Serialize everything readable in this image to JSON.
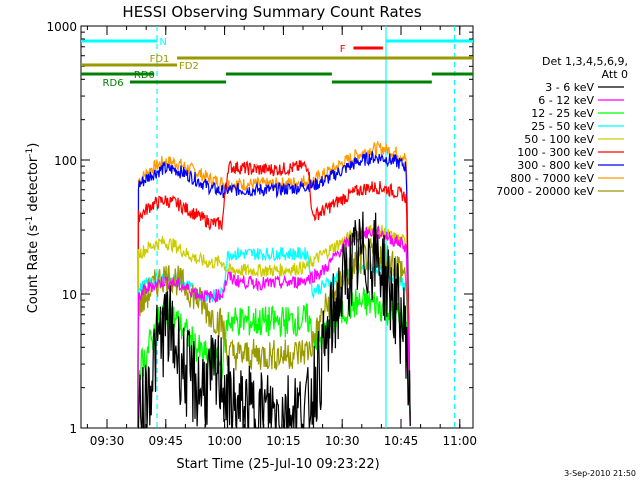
{
  "chart_data": {
    "type": "line",
    "title": "HESSI Observing Summary Count Rates",
    "xlabel": "Start Time (25-Jul-10 09:23:22)",
    "ylabel": "Count Rate (s⁻¹ detector⁻¹)",
    "ylabel_parts": [
      "Count Rate (s",
      "-1",
      " detector",
      "-1",
      ")"
    ],
    "yscale": "log",
    "ylim": [
      1,
      1000
    ],
    "xlim_minutes": [
      0,
      100
    ],
    "xticks": [
      {
        "t": 6.63,
        "label": "09:30"
      },
      {
        "t": 21.63,
        "label": "09:45"
      },
      {
        "t": 36.63,
        "label": "10:00"
      },
      {
        "t": 51.63,
        "label": "10:15"
      },
      {
        "t": 66.63,
        "label": "10:30"
      },
      {
        "t": 81.63,
        "label": "10:45"
      },
      {
        "t": 96.63,
        "label": "11:00"
      }
    ],
    "yticks": [
      {
        "v": 1,
        "label": "1"
      },
      {
        "v": 10,
        "label": "10"
      },
      {
        "v": 100,
        "label": "100"
      },
      {
        "v": 1000,
        "label": "1000"
      }
    ],
    "footer": "3-Sep-2010 21:50",
    "legend": {
      "title_lines": [
        "Det 1,3,4,5,6,9,",
        "Att 0"
      ],
      "placement": "right"
    },
    "series": [
      {
        "name": "3 - 6 keV",
        "color": "#000000",
        "points": [
          [
            14.5,
            1
          ],
          [
            16,
            1.4
          ],
          [
            17.5,
            2.2
          ],
          [
            19,
            3.6
          ],
          [
            20.5,
            5
          ],
          [
            22,
            6
          ],
          [
            23,
            5
          ],
          [
            25,
            3.5
          ],
          [
            27,
            2.5
          ],
          [
            30,
            2
          ],
          [
            33,
            2.2
          ],
          [
            36,
            2.5
          ],
          [
            37.5,
            1.6
          ],
          [
            40,
            1.3
          ],
          [
            45,
            1.3
          ],
          [
            50,
            1.3
          ],
          [
            55,
            1.3
          ],
          [
            58,
            1.3
          ],
          [
            59,
            2
          ],
          [
            62,
            3.5
          ],
          [
            65,
            8
          ],
          [
            68,
            14
          ],
          [
            71,
            19
          ],
          [
            74,
            20
          ],
          [
            76,
            18
          ],
          [
            78,
            12
          ],
          [
            80,
            9
          ],
          [
            82,
            6
          ],
          [
            83,
            5
          ],
          [
            84,
            1
          ]
        ]
      },
      {
        "name": "6 - 12 keV",
        "color": "#ff00ff",
        "points": [
          [
            14.5,
            1
          ],
          [
            14.6,
            9.5
          ],
          [
            16,
            10.5
          ],
          [
            18,
            11.5
          ],
          [
            21,
            12.5
          ],
          [
            24,
            12
          ],
          [
            27,
            11
          ],
          [
            30,
            10
          ],
          [
            33,
            9.5
          ],
          [
            36,
            10
          ],
          [
            37.5,
            13.5
          ],
          [
            40,
            12.5
          ],
          [
            45,
            12
          ],
          [
            50,
            12
          ],
          [
            55,
            12.3
          ],
          [
            58,
            13
          ],
          [
            59,
            13.5
          ],
          [
            62,
            15
          ],
          [
            66,
            21
          ],
          [
            70,
            27
          ],
          [
            74,
            29
          ],
          [
            77,
            28
          ],
          [
            80,
            25
          ],
          [
            82,
            24
          ],
          [
            83,
            22
          ],
          [
            84,
            1
          ]
        ]
      },
      {
        "name": "12 - 25 keV",
        "color": "#00ff00",
        "points": [
          [
            14.5,
            1
          ],
          [
            14.6,
            2.8
          ],
          [
            16,
            3.2
          ],
          [
            18,
            4.5
          ],
          [
            20,
            6.5
          ],
          [
            22,
            7.5
          ],
          [
            24,
            6.5
          ],
          [
            27,
            5
          ],
          [
            30,
            3.8
          ],
          [
            33,
            3.2
          ],
          [
            36,
            3
          ],
          [
            37.5,
            6.5
          ],
          [
            40,
            6.3
          ],
          [
            45,
            6.2
          ],
          [
            50,
            6.2
          ],
          [
            55,
            6.3
          ],
          [
            58,
            6.5
          ],
          [
            59,
            5
          ],
          [
            61,
            4.5
          ],
          [
            64,
            6
          ],
          [
            67,
            7.5
          ],
          [
            70,
            8.5
          ],
          [
            74,
            8.6
          ],
          [
            77,
            8
          ],
          [
            80,
            7
          ],
          [
            82,
            6.5
          ],
          [
            83,
            6
          ],
          [
            84,
            1
          ]
        ]
      },
      {
        "name": "25 - 50 keV",
        "color": "#00ffff",
        "points": [
          [
            14.5,
            1
          ],
          [
            14.6,
            10.5
          ],
          [
            16,
            11.5
          ],
          [
            18,
            12.5
          ],
          [
            21,
            13.5
          ],
          [
            24,
            13
          ],
          [
            27,
            11.5
          ],
          [
            30,
            10
          ],
          [
            33,
            9.5
          ],
          [
            36,
            10
          ],
          [
            37.5,
            20
          ],
          [
            40,
            20
          ],
          [
            45,
            20
          ],
          [
            50,
            20
          ],
          [
            55,
            20
          ],
          [
            58,
            20
          ],
          [
            59,
            10.5
          ],
          [
            62,
            11.5
          ],
          [
            66,
            13.5
          ],
          [
            70,
            15
          ],
          [
            74,
            16
          ],
          [
            77,
            15
          ],
          [
            80,
            13
          ],
          [
            82,
            12
          ],
          [
            83,
            11
          ],
          [
            84,
            1
          ]
        ]
      },
      {
        "name": "50 - 100 keV",
        "color": "#cccc00",
        "points": [
          [
            14.5,
            1
          ],
          [
            14.6,
            20
          ],
          [
            16,
            21
          ],
          [
            18,
            23
          ],
          [
            21,
            24.5
          ],
          [
            24,
            23
          ],
          [
            27,
            20
          ],
          [
            30,
            18
          ],
          [
            33,
            17
          ],
          [
            36,
            17.5
          ],
          [
            37.5,
            15
          ],
          [
            40,
            15
          ],
          [
            45,
            15
          ],
          [
            50,
            15
          ],
          [
            55,
            15.5
          ],
          [
            58,
            16
          ],
          [
            59,
            17.5
          ],
          [
            62,
            20
          ],
          [
            66,
            24
          ],
          [
            70,
            28
          ],
          [
            74,
            30
          ],
          [
            77,
            29
          ],
          [
            80,
            26
          ],
          [
            82,
            25
          ],
          [
            83,
            24
          ],
          [
            84,
            1
          ]
        ]
      },
      {
        "name": "100 - 300 keV",
        "color": "#ff0000",
        "points": [
          [
            14.5,
            1
          ],
          [
            14.6,
            38
          ],
          [
            16,
            41
          ],
          [
            18,
            46
          ],
          [
            21,
            50
          ],
          [
            24,
            48
          ],
          [
            27,
            43
          ],
          [
            30,
            38
          ],
          [
            33,
            34
          ],
          [
            36,
            33
          ],
          [
            37.5,
            89
          ],
          [
            40,
            88
          ],
          [
            45,
            85
          ],
          [
            50,
            85
          ],
          [
            55,
            88
          ],
          [
            58,
            92
          ],
          [
            59,
            38
          ],
          [
            62,
            42
          ],
          [
            66,
            50
          ],
          [
            70,
            58
          ],
          [
            74,
            63
          ],
          [
            77,
            62
          ],
          [
            80,
            58
          ],
          [
            82,
            55
          ],
          [
            83,
            52
          ],
          [
            84,
            1
          ]
        ]
      },
      {
        "name": "300 - 800 keV",
        "color": "#0000ff",
        "points": [
          [
            14.5,
            1
          ],
          [
            14.6,
            65
          ],
          [
            16,
            70
          ],
          [
            18,
            78
          ],
          [
            21,
            86
          ],
          [
            24,
            85
          ],
          [
            27,
            78
          ],
          [
            30,
            70
          ],
          [
            33,
            62
          ],
          [
            36,
            58
          ],
          [
            37.5,
            60
          ],
          [
            40,
            60
          ],
          [
            45,
            60
          ],
          [
            50,
            60
          ],
          [
            55,
            62
          ],
          [
            58,
            65
          ],
          [
            59,
            64
          ],
          [
            62,
            70
          ],
          [
            66,
            82
          ],
          [
            70,
            95
          ],
          [
            74,
            105
          ],
          [
            77,
            104
          ],
          [
            80,
            98
          ],
          [
            82,
            93
          ],
          [
            83,
            88
          ],
          [
            84,
            1
          ]
        ]
      },
      {
        "name": "800 - 7000 keV",
        "color": "#ff9900",
        "points": [
          [
            14.5,
            1
          ],
          [
            14.6,
            70
          ],
          [
            16,
            76
          ],
          [
            18,
            86
          ],
          [
            21,
            97
          ],
          [
            24,
            96
          ],
          [
            27,
            88
          ],
          [
            30,
            80
          ],
          [
            33,
            72
          ],
          [
            36,
            68
          ],
          [
            37.5,
            66
          ],
          [
            40,
            66
          ],
          [
            45,
            66
          ],
          [
            50,
            66
          ],
          [
            55,
            68
          ],
          [
            58,
            71
          ],
          [
            59,
            70
          ],
          [
            62,
            78
          ],
          [
            66,
            92
          ],
          [
            70,
            108
          ],
          [
            74,
            120
          ],
          [
            77,
            122
          ],
          [
            80,
            115
          ],
          [
            82,
            108
          ],
          [
            83,
            102
          ],
          [
            84,
            1
          ]
        ]
      },
      {
        "name": "7000 - 20000 keV",
        "color": "#999900",
        "points": [
          [
            14.5,
            1
          ],
          [
            14.6,
            8
          ],
          [
            16,
            9
          ],
          [
            18,
            11
          ],
          [
            21,
            13.5
          ],
          [
            24,
            13
          ],
          [
            27,
            11
          ],
          [
            30,
            9
          ],
          [
            33,
            7
          ],
          [
            36,
            6
          ],
          [
            37.5,
            3.6
          ],
          [
            40,
            3.5
          ],
          [
            45,
            3.5
          ],
          [
            50,
            3.5
          ],
          [
            55,
            3.6
          ],
          [
            58,
            3.8
          ],
          [
            59,
            4.2
          ],
          [
            62,
            7.5
          ],
          [
            66,
            12
          ],
          [
            70,
            17
          ],
          [
            74,
            20
          ],
          [
            77,
            20
          ],
          [
            80,
            17
          ],
          [
            82,
            15
          ],
          [
            83,
            13
          ],
          [
            84,
            1
          ]
        ]
      }
    ],
    "vertical_lines": [
      {
        "t": 19.4,
        "color": "#00ffff",
        "style": "dashed"
      },
      {
        "t": 77.8,
        "color": "#00ffff",
        "style": "solid"
      },
      {
        "t": 95.3,
        "color": "#00ffff",
        "style": "dashed"
      }
    ],
    "flag_bars": [
      {
        "label": "N",
        "color": "#00ffff",
        "y": 41,
        "label_t": 20,
        "segments": [
          [
            0,
            19.4
          ],
          [
            77.8,
            100
          ]
        ]
      },
      {
        "label": "F",
        "color": "#ff0000",
        "y": 48,
        "label_t": 66,
        "segments": [
          [
            69.5,
            77
          ]
        ]
      },
      {
        "label": "FD1",
        "color": "#999900",
        "y": 58,
        "label_t": 17.5,
        "segments": [
          [
            24.5,
            100
          ]
        ]
      },
      {
        "label": "FD2",
        "color": "#999900",
        "y": 65,
        "label_t": 25,
        "segments": [
          [
            0,
            24.5
          ]
        ]
      },
      {
        "label": "RD0",
        "color": "#008000",
        "y": 74,
        "label_t": 13.5,
        "segments": [
          [
            0,
            18.5
          ],
          [
            37,
            64
          ],
          [
            89.5,
            100
          ]
        ]
      },
      {
        "label": "RD6",
        "color": "#008000",
        "y": 82,
        "label_t": 5.5,
        "segments": [
          [
            12.5,
            37
          ],
          [
            64,
            89.5
          ]
        ]
      }
    ]
  }
}
